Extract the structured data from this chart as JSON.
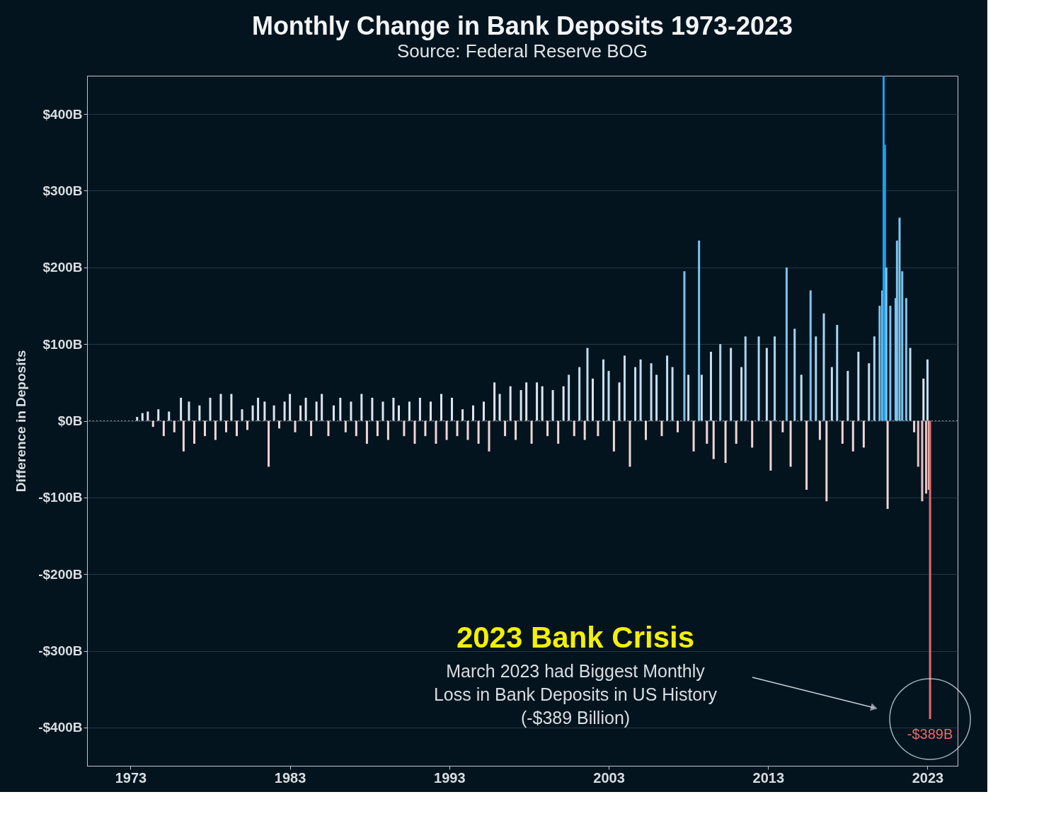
{
  "chart_data": {
    "type": "bar",
    "title": "Monthly Change in Bank Deposits 1973-2023",
    "subtitle": "Source: Federal Reserve BOG",
    "ylabel": "Difference in Deposits",
    "x": [
      "1973-06",
      "1973-10",
      "1974-02",
      "1974-06",
      "1974-10",
      "1975-02",
      "1975-06",
      "1975-10",
      "1976-03",
      "1976-05",
      "1976-09",
      "1977-01",
      "1977-05",
      "1977-09",
      "1978-01",
      "1978-05",
      "1978-09",
      "1979-01",
      "1979-05",
      "1979-09",
      "1980-01",
      "1980-05",
      "1980-09",
      "1981-01",
      "1981-06",
      "1981-09",
      "1982-01",
      "1982-05",
      "1982-09",
      "1983-01",
      "1983-05",
      "1983-09",
      "1984-01",
      "1984-05",
      "1984-09",
      "1985-01",
      "1985-06",
      "1985-10",
      "1986-03",
      "1986-07",
      "1986-11",
      "1987-03",
      "1987-07",
      "1987-11",
      "1988-03",
      "1988-07",
      "1988-11",
      "1989-03",
      "1989-07",
      "1989-11",
      "1990-03",
      "1990-07",
      "1990-11",
      "1991-03",
      "1991-07",
      "1991-11",
      "1992-03",
      "1992-07",
      "1992-11",
      "1993-03",
      "1993-07",
      "1993-11",
      "1994-03",
      "1994-07",
      "1994-11",
      "1995-03",
      "1995-07",
      "1995-11",
      "1996-03",
      "1996-07",
      "1996-11",
      "1997-03",
      "1997-07",
      "1997-11",
      "1998-03",
      "1998-07",
      "1998-11",
      "1999-03",
      "1999-07",
      "1999-11",
      "2000-03",
      "2000-07",
      "2000-11",
      "2001-03",
      "2001-07",
      "2001-09",
      "2002-01",
      "2002-05",
      "2002-09",
      "2003-01",
      "2003-05",
      "2003-09",
      "2004-01",
      "2004-05",
      "2004-09",
      "2005-01",
      "2005-05",
      "2005-09",
      "2006-01",
      "2006-05",
      "2006-09",
      "2007-01",
      "2007-05",
      "2007-10",
      "2008-01",
      "2008-05",
      "2008-09",
      "2008-11",
      "2009-03",
      "2009-06",
      "2009-08",
      "2010-01",
      "2010-05",
      "2010-09",
      "2011-01",
      "2011-05",
      "2011-08",
      "2012-01",
      "2012-06",
      "2012-12",
      "2013-03",
      "2013-06",
      "2013-12",
      "2014-03",
      "2014-06",
      "2014-09",
      "2015-02",
      "2015-06",
      "2015-09",
      "2016-01",
      "2016-04",
      "2016-07",
      "2016-09",
      "2017-01",
      "2017-05",
      "2017-09",
      "2018-01",
      "2018-05",
      "2018-09",
      "2019-01",
      "2019-05",
      "2019-09",
      "2020-01",
      "2020-03",
      "2020-04",
      "2020-05",
      "2020-06",
      "2020-07",
      "2020-09",
      "2021-01",
      "2021-02",
      "2021-04",
      "2021-06",
      "2021-09",
      "2021-12",
      "2022-03",
      "2022-06",
      "2022-09",
      "2022-10",
      "2022-12",
      "2023-01",
      "2023-02",
      "2023-03"
    ],
    "values": [
      5,
      10,
      12,
      -8,
      15,
      -20,
      12,
      -15,
      30,
      -40,
      25,
      -30,
      20,
      -20,
      30,
      -25,
      35,
      -15,
      35,
      -20,
      15,
      -12,
      20,
      30,
      25,
      -60,
      20,
      -10,
      25,
      35,
      -15,
      20,
      30,
      -20,
      25,
      35,
      -20,
      20,
      30,
      -15,
      25,
      -20,
      35,
      -30,
      30,
      -20,
      25,
      -25,
      30,
      20,
      -20,
      25,
      -30,
      30,
      -20,
      25,
      -30,
      35,
      -25,
      30,
      -20,
      15,
      -25,
      20,
      -30,
      25,
      -40,
      50,
      35,
      -20,
      45,
      -25,
      40,
      50,
      -30,
      50,
      45,
      -20,
      40,
      -30,
      45,
      60,
      -20,
      70,
      -25,
      95,
      55,
      -20,
      80,
      65,
      -40,
      50,
      85,
      -60,
      70,
      80,
      -25,
      75,
      60,
      -20,
      85,
      70,
      -15,
      195,
      60,
      -40,
      235,
      60,
      -30,
      90,
      -50,
      100,
      -55,
      95,
      -30,
      70,
      110,
      -35,
      110,
      95,
      -65,
      110,
      -15,
      200,
      -60,
      120,
      60,
      -90,
      170,
      110,
      -25,
      140,
      -105,
      70,
      125,
      -30,
      65,
      -40,
      90,
      -35,
      75,
      110,
      150,
      170,
      450,
      360,
      200,
      -115,
      150,
      160,
      235,
      265,
      195,
      160,
      95,
      -15,
      -60,
      -105,
      55,
      -95,
      80,
      -90,
      -389
    ],
    "colors": [
      "#dde6ee",
      "#dde6ee",
      "#dde6ee",
      "#efd6d6",
      "#dde6ee",
      "#efd6d6",
      "#dde6ee",
      "#efd6d6",
      "#dde6ee",
      "#efd6d6",
      "#dde6ee",
      "#efd6d6",
      "#dde6ee",
      "#efd6d6",
      "#dde6ee",
      "#efd6d6",
      "#dde6ee",
      "#efd6d6",
      "#dde6ee",
      "#efd6d6",
      "#dde6ee",
      "#efd6d6",
      "#dde6ee",
      "#dde6ee",
      "#dde6ee",
      "#efd6d6",
      "#dde6ee",
      "#efd6d6",
      "#dde6ee",
      "#dde6ee",
      "#efd6d6",
      "#dde6ee",
      "#dde6ee",
      "#efd6d6",
      "#dde6ee",
      "#dde6ee",
      "#efd6d6",
      "#dde6ee",
      "#dde6ee",
      "#efd6d6",
      "#dde6ee",
      "#efd6d6",
      "#dde6ee",
      "#efd6d6",
      "#dde6ee",
      "#efd6d6",
      "#dde6ee",
      "#efd6d6",
      "#dde6ee",
      "#dde6ee",
      "#efd6d6",
      "#dde6ee",
      "#efd6d6",
      "#dde6ee",
      "#efd6d6",
      "#dde6ee",
      "#efd6d6",
      "#dde6ee",
      "#efd6d6",
      "#dde6ee",
      "#efd6d6",
      "#dde6ee",
      "#efd6d6",
      "#dde6ee",
      "#efd6d6",
      "#dde6ee",
      "#efd6d6",
      "#dde6ee",
      "#dde6ee",
      "#efd6d6",
      "#dde6ee",
      "#efd6d6",
      "#dde6ee",
      "#dde6ee",
      "#efd6d6",
      "#dde6ee",
      "#dde6ee",
      "#efd6d6",
      "#dde6ee",
      "#efd6d6",
      "#dde6ee",
      "#c4def0",
      "#efd6d6",
      "#c4def0",
      "#efd6d6",
      "#c4def0",
      "#dde6ee",
      "#efd6d6",
      "#c4def0",
      "#c4def0",
      "#efd6d6",
      "#dde6ee",
      "#c4def0",
      "#efd6d6",
      "#c4def0",
      "#c4def0",
      "#efd6d6",
      "#c4def0",
      "#c4def0",
      "#efd6d6",
      "#c4def0",
      "#c4def0",
      "#efd6d6",
      "#7cc4ee",
      "#c4def0",
      "#efd6d6",
      "#7cc4ee",
      "#c4def0",
      "#efd6d6",
      "#c4def0",
      "#efd6d6",
      "#a8d4f0",
      "#efd6d6",
      "#c4def0",
      "#efd6d6",
      "#c4def0",
      "#a8d4f0",
      "#efd6d6",
      "#a8d4f0",
      "#c4def0",
      "#efd6d6",
      "#a8d4f0",
      "#efd6d6",
      "#7cc4ee",
      "#efd6d6",
      "#a8d4f0",
      "#c4def0",
      "#efd6d6",
      "#7cc4ee",
      "#a8d4f0",
      "#efd6d6",
      "#a8d4f0",
      "#efd6d6",
      "#c4def0",
      "#a8d4f0",
      "#efd6d6",
      "#c4def0",
      "#efd6d6",
      "#c4def0",
      "#efd6d6",
      "#c4def0",
      "#a8d4f0",
      "#7cc4ee",
      "#7cc4ee",
      "#1aa0ea",
      "#1aa0ea",
      "#7cc4ee",
      "#efd6d6",
      "#7cc4ee",
      "#7cc4ee",
      "#7cc4ee",
      "#7cc4ee",
      "#7cc4ee",
      "#7cc4ee",
      "#c4def0",
      "#efd6d6",
      "#eac0c0",
      "#eac0c0",
      "#dde6ee",
      "#eac0c0",
      "#c4def0",
      "#eac0c0",
      "#e8696b"
    ],
    "xlim": [
      "1970-07",
      "2024-09"
    ],
    "xticks": [
      "1973",
      "1983",
      "1993",
      "2003",
      "2013",
      "2023"
    ],
    "ylim": [
      -450,
      450
    ],
    "yticks": [
      {
        "value": -400,
        "label": "-$400B"
      },
      {
        "value": -300,
        "label": "-$300B"
      },
      {
        "value": -200,
        "label": "-$200B"
      },
      {
        "value": -100,
        "label": "-$100B"
      },
      {
        "value": 0,
        "label": "$0B"
      },
      {
        "value": 100,
        "label": "$100B"
      },
      {
        "value": 200,
        "label": "$200B"
      },
      {
        "value": 300,
        "label": "$300B"
      },
      {
        "value": 400,
        "label": "$400B"
      }
    ],
    "grid": "y",
    "ref_lines": [
      {
        "axis": "y",
        "value": 0,
        "label": null,
        "line_style": "dotted",
        "color": "#8899a0"
      }
    ],
    "annotations": [
      "2023 Bank Crisis",
      "March 2023 had Biggest Monthly",
      "Loss in Bank Deposits in US History",
      "(-$389 Billion)",
      {
        "text": "-$389B",
        "x": "2023-03",
        "y": -389
      }
    ]
  }
}
